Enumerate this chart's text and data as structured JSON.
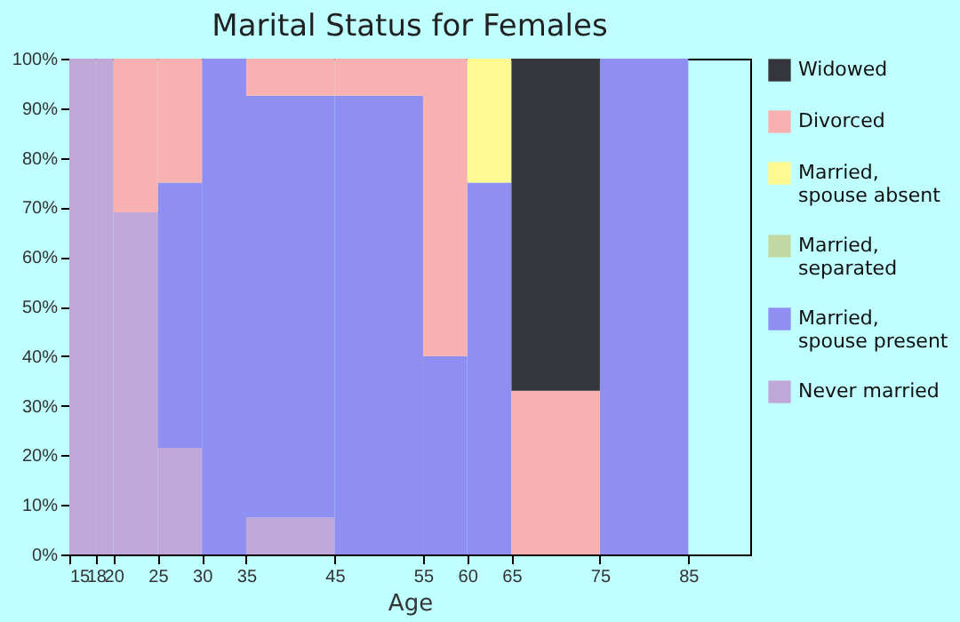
{
  "chart_data": {
    "type": "bar",
    "stacked": true,
    "title": "Marital Status for Females",
    "xlabel": "Age",
    "x": [
      16.5,
      19,
      22.5,
      27.5,
      32.5,
      40,
      50,
      57.5,
      62.5,
      70,
      80
    ],
    "xlim": [
      15,
      92
    ],
    "xticks": [
      15,
      18,
      20,
      25,
      30,
      35,
      45,
      55,
      60,
      65,
      75,
      85
    ],
    "ylim": [
      0,
      100
    ],
    "yticks": [
      {
        "value": 0,
        "label": "0%"
      },
      {
        "value": 10,
        "label": "10%"
      },
      {
        "value": 20,
        "label": "20%"
      },
      {
        "value": 30,
        "label": "30%"
      },
      {
        "value": 40,
        "label": "40%"
      },
      {
        "value": 50,
        "label": "50%"
      },
      {
        "value": 60,
        "label": "60%"
      },
      {
        "value": 70,
        "label": "70%"
      },
      {
        "value": 80,
        "label": "80%"
      },
      {
        "value": 90,
        "label": "90%"
      },
      {
        "value": 100,
        "label": "100%"
      }
    ],
    "legend": "right",
    "grid": false,
    "series": [
      {
        "name": "Never married",
        "color": "#bfa7d8",
        "values": [
          100,
          100,
          69,
          21.5,
          0,
          7.5,
          0,
          0,
          0,
          0,
          0
        ]
      },
      {
        "name": "Married, spouse present",
        "color": "#8f8ff2",
        "values": [
          0,
          0,
          0,
          53.5,
          100,
          85,
          92.5,
          40,
          75,
          0,
          100
        ]
      },
      {
        "name": "Married, separated",
        "color": "#c2d9a4",
        "values": [
          0,
          0,
          0,
          0,
          0,
          0,
          0,
          0,
          0,
          0,
          0
        ]
      },
      {
        "name": "Married, spouse absent",
        "color": "#fef991",
        "values": [
          0,
          0,
          0,
          0,
          0,
          0,
          0,
          0,
          25,
          0,
          0
        ]
      },
      {
        "name": "Divorced",
        "color": "#f8b1b0",
        "values": [
          0,
          0,
          31,
          25,
          0,
          7.5,
          7.5,
          60,
          0,
          33,
          0
        ]
      },
      {
        "name": "Widowed",
        "color": "#35363b",
        "values": [
          0,
          0,
          0,
          0,
          0,
          0,
          0,
          0,
          0,
          67,
          0
        ]
      }
    ]
  }
}
